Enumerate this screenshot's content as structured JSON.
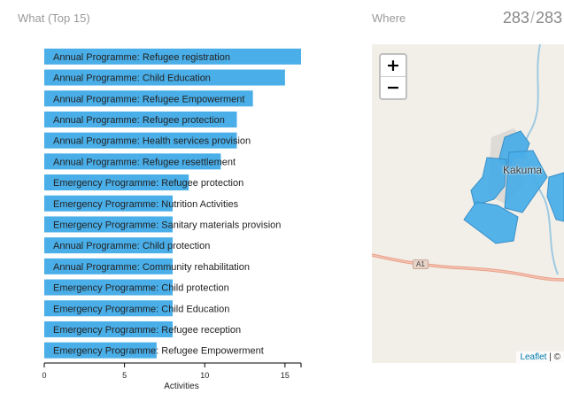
{
  "what": {
    "title": "What (Top 15)"
  },
  "where": {
    "title": "Where"
  },
  "counter": {
    "shown": "283",
    "total": "283"
  },
  "chart_data": {
    "type": "bar",
    "orientation": "horizontal",
    "xlabel": "Activities",
    "xlim": [
      0,
      16
    ],
    "xticks": [
      0,
      5,
      10,
      15
    ],
    "bar_color": "#4aaee8",
    "categories": [
      "Annual Programme: Refugee registration",
      "Annual Programme: Child Education",
      "Annual Programme: Refugee Empowerment",
      "Annual Programme: Refugee protection",
      "Annual Programme: Health services provision",
      "Annual Programme: Refugee resettlement",
      "Emergency Programme: Refugee protection",
      "Emergency Programme: Nutrition Activities",
      "Emergency Programme: Sanitary materials provision",
      "Annual Programme: Child protection",
      "Annual Programme: Community rehabilitation",
      "Emergency Programme: Child protection",
      "Emergency Programme: Child Education",
      "Emergency Programme: Refugee reception",
      "Emergency Programme: Refugee Empowerment"
    ],
    "values": [
      16,
      15,
      13,
      12,
      12,
      11,
      9,
      8,
      8,
      8,
      8,
      8,
      8,
      8,
      7
    ]
  },
  "map": {
    "zoom_in": "+",
    "zoom_out": "−",
    "place": "Kakuma",
    "road": "A1",
    "attribution_link": "Leaflet",
    "attribution_rest": "| ©",
    "polygon_color": "#4aaee8"
  }
}
